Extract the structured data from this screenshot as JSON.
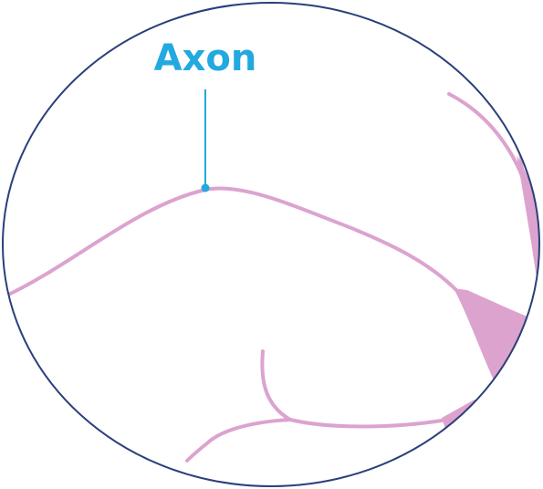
{
  "diagram": {
    "label": "Axon",
    "colors": {
      "border": "#2b3f7a",
      "neuron": "#dca3cf",
      "label": "#22a9e0"
    }
  }
}
